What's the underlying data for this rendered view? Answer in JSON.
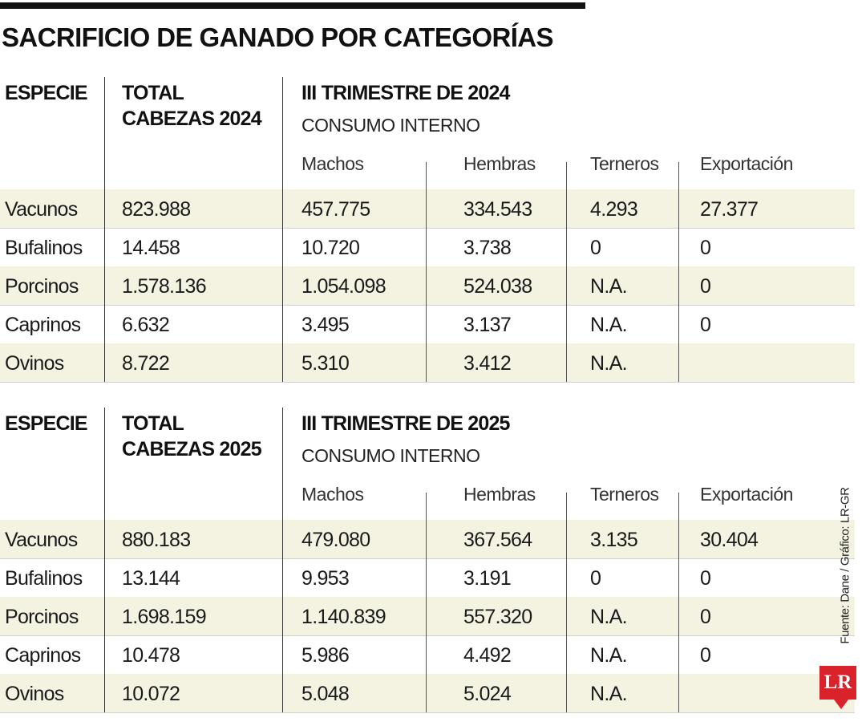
{
  "title": "SACRIFICIO DE GANADO POR CATEGORÍAS",
  "source": "Fuente: Dane / Gráfico: LR-GR",
  "logo": "LR",
  "tables": [
    {
      "especie_header": "ESPECIE",
      "total_header": [
        "TOTAL",
        "CABEZAS 2024"
      ],
      "period_header": "III TRIMESTRE DE 2024",
      "consumo_header": "CONSUMO INTERNO",
      "subheaders": [
        "Machos",
        "Hembras",
        "Terneros",
        "Exportación"
      ],
      "rows": [
        [
          "Vacunos",
          "823.988",
          "457.775",
          "334.543",
          "4.293",
          "27.377"
        ],
        [
          "Bufalinos",
          "14.458",
          "10.720",
          "3.738",
          "0",
          "0"
        ],
        [
          "Porcinos",
          "1.578.136",
          "1.054.098",
          "524.038",
          "N.A.",
          "0"
        ],
        [
          "Caprinos",
          "6.632",
          "3.495",
          "3.137",
          "N.A.",
          "0"
        ],
        [
          "Ovinos",
          "8.722",
          "5.310",
          "3.412",
          "N.A.",
          ""
        ]
      ]
    },
    {
      "especie_header": "ESPECIE",
      "total_header": [
        "TOTAL",
        "CABEZAS 2025"
      ],
      "period_header": "III TRIMESTRE DE 2025",
      "consumo_header": "CONSUMO INTERNO",
      "subheaders": [
        "Machos",
        "Hembras",
        "Terneros",
        "Exportación"
      ],
      "rows": [
        [
          "Vacunos",
          "880.183",
          "479.080",
          "367.564",
          "3.135",
          "30.404"
        ],
        [
          "Bufalinos",
          "13.144",
          "9.953",
          "3.191",
          "0",
          "0"
        ],
        [
          "Porcinos",
          "1.698.159",
          "1.140.839",
          "557.320",
          "N.A.",
          "0"
        ],
        [
          "Caprinos",
          "10.478",
          "5.986",
          "4.492",
          "N.A.",
          "0"
        ],
        [
          "Ovinos",
          "10.072",
          "5.048",
          "5.024",
          "N.A.",
          ""
        ]
      ]
    }
  ]
}
